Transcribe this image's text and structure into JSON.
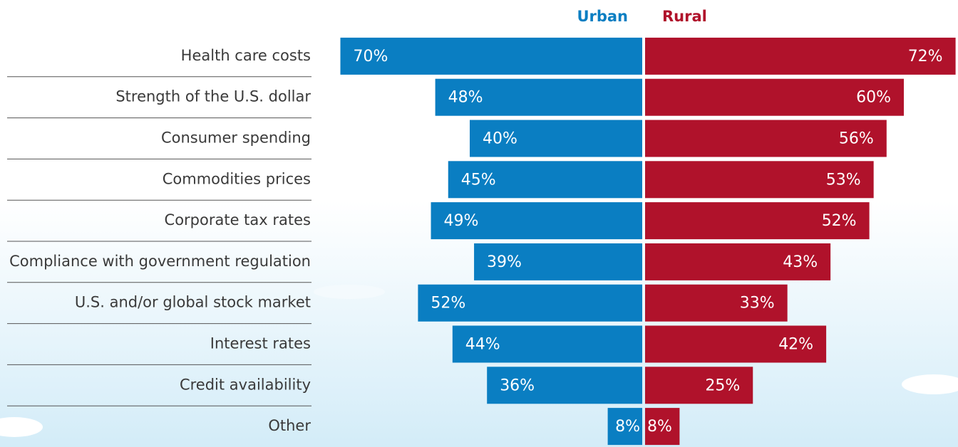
{
  "chart_data": {
    "type": "diverging-bar",
    "categories": [
      "Health care costs",
      "Strength of the U.S. dollar",
      "Consumer spending",
      "Commodities prices",
      "Corporate tax rates",
      "Compliance with government regulation",
      "U.S. and/or global stock market",
      "Interest rates",
      "Credit availability",
      "Other"
    ],
    "series": [
      {
        "name": "Urban",
        "color": "#0a7ec2",
        "values": [
          70,
          48,
          40,
          45,
          49,
          39,
          52,
          44,
          36,
          8
        ],
        "value_labels": [
          "70%",
          "48%",
          "40%",
          "45%",
          "49%",
          "39%",
          "52%",
          "44%",
          "36%",
          "8%"
        ]
      },
      {
        "name": "Rural",
        "color": "#b0122b",
        "values": [
          72,
          60,
          56,
          53,
          52,
          43,
          33,
          42,
          25,
          8
        ],
        "value_labels": [
          "72%",
          "60%",
          "56%",
          "53%",
          "52%",
          "43%",
          "33%",
          "42%",
          "25%",
          "8%"
        ]
      }
    ]
  }
}
